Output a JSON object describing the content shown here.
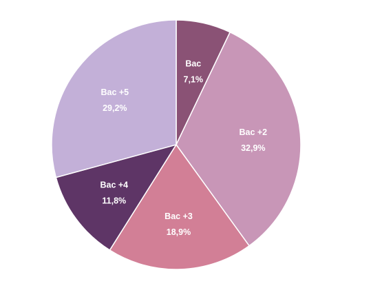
{
  "chart_data": {
    "type": "pie",
    "slices": [
      {
        "label": "Bac",
        "value": 7.1,
        "value_label": "7,1%",
        "color": "#8a5275"
      },
      {
        "label": "Bac +2",
        "value": 32.9,
        "value_label": "32,9%",
        "color": "#c896b7"
      },
      {
        "label": "Bac +3",
        "value": 18.9,
        "value_label": "18,9%",
        "color": "#d27f96"
      },
      {
        "label": "Bac +4",
        "value": 11.8,
        "value_label": "11,8%",
        "color": "#5e3566"
      },
      {
        "label": "Bac +5",
        "value": 29.2,
        "value_label": "29,2%",
        "color": "#c3b0d8"
      }
    ],
    "start_angle_deg": 0,
    "direction": "clockwise",
    "title": "",
    "legend": "none"
  }
}
